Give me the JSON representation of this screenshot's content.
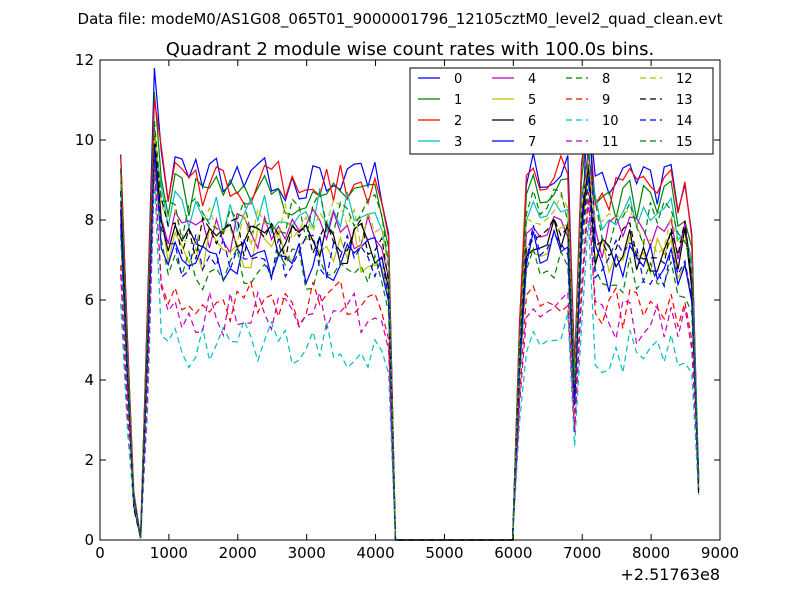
{
  "suptitle": "Data file: modeM0/AS1G08_065T01_9000001796_12105cztM0_level2_quad_clean.evt",
  "chart_data": {
    "type": "line",
    "title": "Quadrant 2 module wise count rates with 100.0s bins.",
    "xlabel": "",
    "ylabel": "",
    "xlim": [
      0,
      9000
    ],
    "ylim": [
      0,
      12
    ],
    "x_offset_label": "+2.51763e8",
    "x_ticks": [
      0,
      1000,
      2000,
      3000,
      4000,
      5000,
      6000,
      7000,
      8000,
      9000
    ],
    "y_ticks": [
      0,
      2,
      4,
      6,
      8,
      10,
      12
    ],
    "grid": false,
    "legend_position": "top-right",
    "legend_columns": 4,
    "series": [
      {
        "name": "0",
        "color": "#0000ff",
        "dash": "solid",
        "base": 9.0,
        "peak": 11.8,
        "mid": 10.8
      },
      {
        "name": "1",
        "color": "#008000",
        "dash": "solid",
        "base": 8.6,
        "peak": 11.2,
        "mid": 10.4
      },
      {
        "name": "2",
        "color": "#ff0000",
        "dash": "solid",
        "base": 8.9,
        "peak": 11.0,
        "mid": 10.7
      },
      {
        "name": "3",
        "color": "#00bfbf",
        "dash": "solid",
        "base": 8.2,
        "peak": 10.0,
        "mid": 9.6
      },
      {
        "name": "4",
        "color": "#bf00bf",
        "dash": "solid",
        "base": 7.7,
        "peak": 10.3,
        "mid": 9.8
      },
      {
        "name": "5",
        "color": "#bfbf00",
        "dash": "solid",
        "base": 7.2,
        "peak": 9.8,
        "mid": 9.2
      },
      {
        "name": "6",
        "color": "#000000",
        "dash": "solid",
        "base": 7.4,
        "peak": 10.1,
        "mid": 9.4
      },
      {
        "name": "7",
        "color": "#0000ff",
        "dash": "solid",
        "base": 7.0,
        "peak": 9.9,
        "mid": 11.3
      },
      {
        "name": "8",
        "color": "#008000",
        "dash": "dashed",
        "base": 6.7,
        "peak": 9.6,
        "mid": 9.0
      },
      {
        "name": "9",
        "color": "#ff0000",
        "dash": "dashed",
        "base": 5.9,
        "peak": 9.3,
        "mid": 8.7
      },
      {
        "name": "10",
        "color": "#00bfbf",
        "dash": "dashed",
        "base": 4.9,
        "peak": 9.1,
        "mid": 8.0
      },
      {
        "name": "11",
        "color": "#bf00bf",
        "dash": "dashed",
        "base": 5.6,
        "peak": 9.4,
        "mid": 8.5
      },
      {
        "name": "12",
        "color": "#bfbf00",
        "dash": "dashed",
        "base": 7.9,
        "peak": 10.2,
        "mid": 9.5
      },
      {
        "name": "13",
        "color": "#000000",
        "dash": "dashed",
        "base": 7.6,
        "peak": 9.9,
        "mid": 9.3
      },
      {
        "name": "14",
        "color": "#0000ff",
        "dash": "dashed",
        "base": 7.1,
        "peak": 9.7,
        "mid": 9.1
      },
      {
        "name": "15",
        "color": "#008000",
        "dash": "dashed",
        "base": 8.1,
        "peak": 10.5,
        "mid": 9.7
      }
    ]
  }
}
